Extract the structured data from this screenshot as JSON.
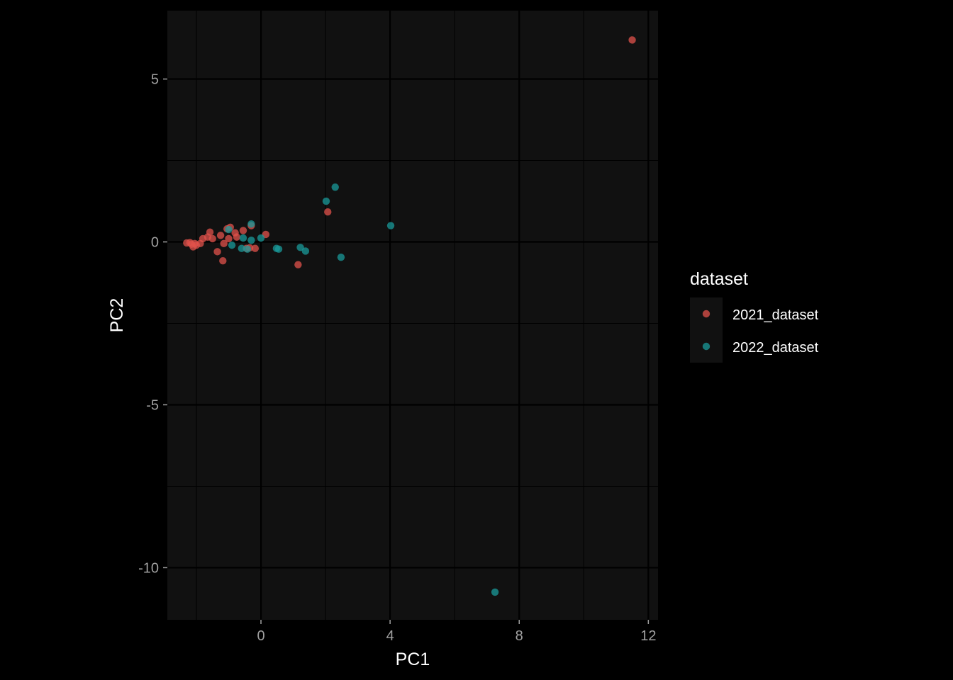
{
  "chart_data": {
    "type": "scatter",
    "title": "",
    "xlabel": "PC1",
    "ylabel": "PC2",
    "xlim": [
      -2.9,
      12.3
    ],
    "ylim": [
      -11.6,
      7.1
    ],
    "x_ticks": [
      0,
      4,
      8,
      12
    ],
    "y_ticks": [
      5,
      0,
      -5,
      -10
    ],
    "x_tick_labels": [
      "0",
      "4",
      "8",
      "12"
    ],
    "y_tick_labels": [
      "5",
      "0",
      "-5",
      "-10"
    ],
    "grid": true,
    "legend": {
      "title": "dataset",
      "position": "right"
    },
    "series": [
      {
        "name": "2021_dataset",
        "color": "#e0524b",
        "points": [
          [
            11.5,
            6.2
          ],
          [
            2.07,
            0.92
          ],
          [
            1.15,
            -0.7
          ],
          [
            0.15,
            0.23
          ],
          [
            -0.18,
            -0.2
          ],
          [
            -0.3,
            0.5
          ],
          [
            -0.35,
            -0.18
          ],
          [
            -0.45,
            -0.2
          ],
          [
            -0.55,
            0.35
          ],
          [
            -0.75,
            0.15
          ],
          [
            -0.8,
            0.28
          ],
          [
            -0.95,
            0.45
          ],
          [
            -1.0,
            0.1
          ],
          [
            -1.05,
            0.4
          ],
          [
            -1.15,
            -0.05
          ],
          [
            -1.18,
            -0.58
          ],
          [
            -1.25,
            0.2
          ],
          [
            -1.35,
            -0.3
          ],
          [
            -1.5,
            0.1
          ],
          [
            -1.58,
            0.3
          ],
          [
            -1.65,
            0.15
          ],
          [
            -1.8,
            0.1
          ],
          [
            -1.88,
            -0.05
          ],
          [
            -2.0,
            -0.1
          ],
          [
            -2.05,
            -0.05
          ],
          [
            -2.1,
            -0.15
          ],
          [
            -2.15,
            -0.07
          ],
          [
            -2.2,
            -0.02
          ],
          [
            -2.3,
            -0.03
          ]
        ]
      },
      {
        "name": "2022_dataset",
        "color": "#1a9a9a",
        "points": [
          [
            7.25,
            -10.75
          ],
          [
            2.3,
            1.68
          ],
          [
            2.02,
            1.25
          ],
          [
            4.02,
            0.5
          ],
          [
            2.48,
            -0.47
          ],
          [
            1.38,
            -0.28
          ],
          [
            1.22,
            -0.17
          ],
          [
            0.55,
            -0.22
          ],
          [
            0.48,
            -0.2
          ],
          [
            0.0,
            0.12
          ],
          [
            -0.3,
            0.55
          ],
          [
            -0.3,
            0.05
          ],
          [
            -0.42,
            -0.22
          ],
          [
            -0.55,
            0.12
          ],
          [
            -0.6,
            -0.2
          ],
          [
            -0.9,
            -0.1
          ],
          [
            -1.0,
            0.38
          ]
        ]
      }
    ]
  }
}
